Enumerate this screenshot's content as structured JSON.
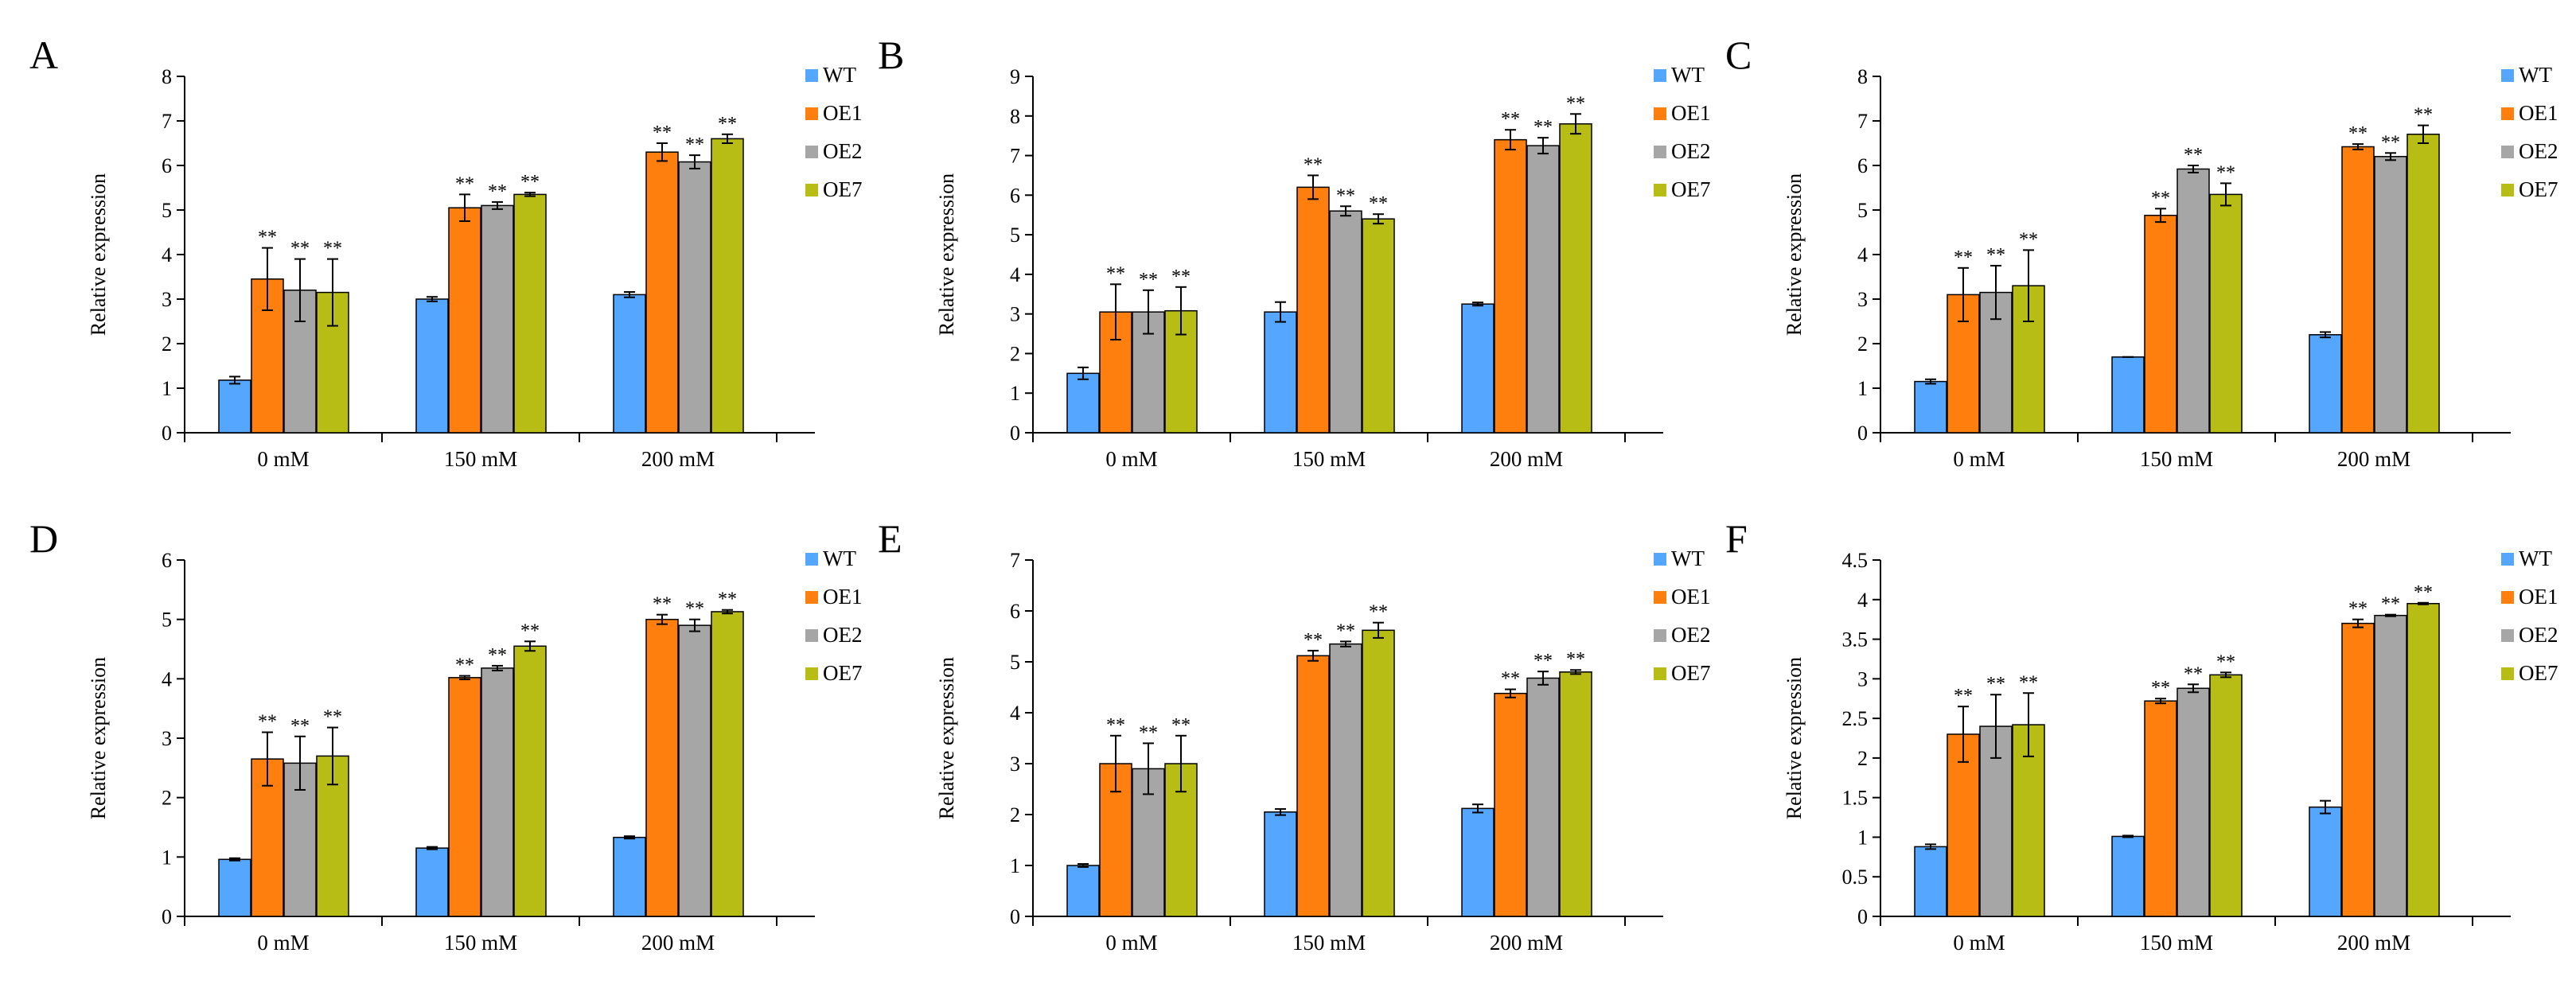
{
  "legend_items": [
    "WT",
    "OE1",
    "OE2",
    "OE7"
  ],
  "colors": {
    "WT": "#55a6ff",
    "OE1": "#ff7f0e",
    "OE2": "#a6a6a6",
    "OE7": "#b7bd14"
  },
  "chart_data": [
    {
      "type": "bar",
      "panel_label": "A",
      "ylabel": "Relative  expression",
      "categories": [
        "0 mM",
        "150 mM",
        "200 mM"
      ],
      "ylim": [
        0,
        8
      ],
      "yticks": [
        "0",
        "1",
        "2",
        "3",
        "4",
        "5",
        "6",
        "7",
        "8"
      ],
      "legend": "right",
      "grid": false,
      "series": [
        {
          "name": "WT",
          "values": [
            1.18,
            3.0,
            3.1
          ],
          "errors": [
            0.08,
            0.05,
            0.06
          ],
          "labels": [
            "",
            "",
            ""
          ]
        },
        {
          "name": "OE1",
          "values": [
            3.45,
            5.05,
            6.3
          ],
          "errors": [
            0.7,
            0.3,
            0.2
          ],
          "labels": [
            "**",
            "**",
            "**"
          ]
        },
        {
          "name": "OE2",
          "values": [
            3.2,
            5.1,
            6.08
          ],
          "errors": [
            0.7,
            0.08,
            0.15
          ],
          "labels": [
            "**",
            "**",
            "**"
          ]
        },
        {
          "name": "OE7",
          "values": [
            3.15,
            5.35,
            6.6
          ],
          "errors": [
            0.75,
            0.04,
            0.1
          ],
          "labels": [
            "**",
            "**",
            "**"
          ]
        }
      ]
    },
    {
      "type": "bar",
      "panel_label": "B",
      "ylabel": "Relative  expression",
      "categories": [
        "0 mM",
        "150 mM",
        "200 mM"
      ],
      "ylim": [
        0,
        9
      ],
      "yticks": [
        "0",
        "1",
        "2",
        "3",
        "4",
        "5",
        "6",
        "7",
        "8",
        "9"
      ],
      "legend": "right",
      "grid": false,
      "series": [
        {
          "name": "WT",
          "values": [
            1.5,
            3.05,
            3.25
          ],
          "errors": [
            0.15,
            0.25,
            0.04
          ],
          "labels": [
            "",
            "",
            ""
          ]
        },
        {
          "name": "OE1",
          "values": [
            3.05,
            6.2,
            7.4
          ],
          "errors": [
            0.7,
            0.3,
            0.25
          ],
          "labels": [
            "**",
            "**",
            "**"
          ]
        },
        {
          "name": "OE2",
          "values": [
            3.05,
            5.6,
            7.25
          ],
          "errors": [
            0.55,
            0.12,
            0.2
          ],
          "labels": [
            "**",
            "**",
            "**"
          ]
        },
        {
          "name": "OE7",
          "values": [
            3.08,
            5.4,
            7.8
          ],
          "errors": [
            0.6,
            0.12,
            0.25
          ],
          "labels": [
            "**",
            "**",
            "**"
          ]
        }
      ]
    },
    {
      "type": "bar",
      "panel_label": "C",
      "ylabel": "Relative  expression",
      "categories": [
        "0 mM",
        "150 mM",
        "200 mM"
      ],
      "ylim": [
        0,
        8
      ],
      "yticks": [
        "0",
        "1",
        "2",
        "3",
        "4",
        "5",
        "6",
        "7",
        "8"
      ],
      "legend": "right",
      "grid": false,
      "series": [
        {
          "name": "WT",
          "values": [
            1.15,
            1.7,
            2.2
          ],
          "errors": [
            0.05,
            0.0,
            0.06
          ],
          "labels": [
            "",
            "",
            ""
          ]
        },
        {
          "name": "OE1",
          "values": [
            3.1,
            4.88,
            6.42
          ],
          "errors": [
            0.6,
            0.15,
            0.06
          ],
          "labels": [
            "**",
            "**",
            "**"
          ]
        },
        {
          "name": "OE2",
          "values": [
            3.15,
            5.92,
            6.2
          ],
          "errors": [
            0.6,
            0.08,
            0.08
          ],
          "labels": [
            "**",
            "**",
            "**"
          ]
        },
        {
          "name": "OE7",
          "values": [
            3.3,
            5.35,
            6.7
          ],
          "errors": [
            0.8,
            0.25,
            0.2
          ],
          "labels": [
            "**",
            "**",
            "**"
          ]
        }
      ]
    },
    {
      "type": "bar",
      "panel_label": "D",
      "ylabel": "Relative  expression",
      "categories": [
        "0 mM",
        "150 mM",
        "200 mM"
      ],
      "ylim": [
        0,
        6
      ],
      "yticks": [
        "0",
        "1",
        "2",
        "3",
        "4",
        "5",
        "6"
      ],
      "legend": "right",
      "grid": false,
      "series": [
        {
          "name": "WT",
          "values": [
            0.96,
            1.15,
            1.33
          ],
          "errors": [
            0.02,
            0.02,
            0.02
          ],
          "labels": [
            "",
            "",
            ""
          ]
        },
        {
          "name": "OE1",
          "values": [
            2.65,
            4.02,
            5.0
          ],
          "errors": [
            0.45,
            0.03,
            0.08
          ],
          "labels": [
            "**",
            "**",
            "**"
          ]
        },
        {
          "name": "OE2",
          "values": [
            2.58,
            4.18,
            4.9
          ],
          "errors": [
            0.45,
            0.04,
            0.1
          ],
          "labels": [
            "**",
            "**",
            "**"
          ]
        },
        {
          "name": "OE7",
          "values": [
            2.7,
            4.55,
            5.13
          ],
          "errors": [
            0.48,
            0.08,
            0.03
          ],
          "labels": [
            "**",
            "**",
            "**"
          ]
        }
      ]
    },
    {
      "type": "bar",
      "panel_label": "E",
      "ylabel": "Relative  expression",
      "categories": [
        "0 mM",
        "150 mM",
        "200 mM"
      ],
      "ylim": [
        0,
        7
      ],
      "yticks": [
        "0",
        "1",
        "2",
        "3",
        "4",
        "5",
        "6",
        "7"
      ],
      "legend": "right",
      "grid": false,
      "series": [
        {
          "name": "WT",
          "values": [
            1.0,
            2.05,
            2.12
          ],
          "errors": [
            0.03,
            0.06,
            0.08
          ],
          "labels": [
            "",
            "",
            ""
          ]
        },
        {
          "name": "OE1",
          "values": [
            3.0,
            5.12,
            4.38
          ],
          "errors": [
            0.55,
            0.1,
            0.08
          ],
          "labels": [
            "**",
            "**",
            "**"
          ]
        },
        {
          "name": "OE2",
          "values": [
            2.9,
            5.35,
            4.68
          ],
          "errors": [
            0.5,
            0.05,
            0.13
          ],
          "labels": [
            "**",
            "**",
            "**"
          ]
        },
        {
          "name": "OE7",
          "values": [
            3.0,
            5.62,
            4.8
          ],
          "errors": [
            0.55,
            0.15,
            0.04
          ],
          "labels": [
            "**",
            "**",
            "**"
          ]
        }
      ]
    },
    {
      "type": "bar",
      "panel_label": "F",
      "ylabel": "Relative  expression",
      "categories": [
        "0 mM",
        "150 mM",
        "200 mM"
      ],
      "ylim": [
        0,
        4.5
      ],
      "yticks": [
        "0",
        "0.5",
        "1",
        "1.5",
        "2",
        "2.5",
        "3",
        "3.5",
        "4",
        "4.5"
      ],
      "legend": "right",
      "grid": false,
      "series": [
        {
          "name": "WT",
          "values": [
            0.88,
            1.01,
            1.38
          ],
          "errors": [
            0.03,
            0.01,
            0.08
          ],
          "labels": [
            "",
            "",
            ""
          ]
        },
        {
          "name": "OE1",
          "values": [
            2.3,
            2.72,
            3.7
          ],
          "errors": [
            0.35,
            0.03,
            0.05
          ],
          "labels": [
            "**",
            "**",
            "**"
          ]
        },
        {
          "name": "OE2",
          "values": [
            2.4,
            2.88,
            3.8
          ],
          "errors": [
            0.4,
            0.05,
            0.01
          ],
          "labels": [
            "**",
            "**",
            "**"
          ]
        },
        {
          "name": "OE7",
          "values": [
            2.42,
            3.05,
            3.95
          ],
          "errors": [
            0.4,
            0.03,
            0.01
          ],
          "labels": [
            "**",
            "**",
            "**"
          ]
        }
      ]
    }
  ]
}
